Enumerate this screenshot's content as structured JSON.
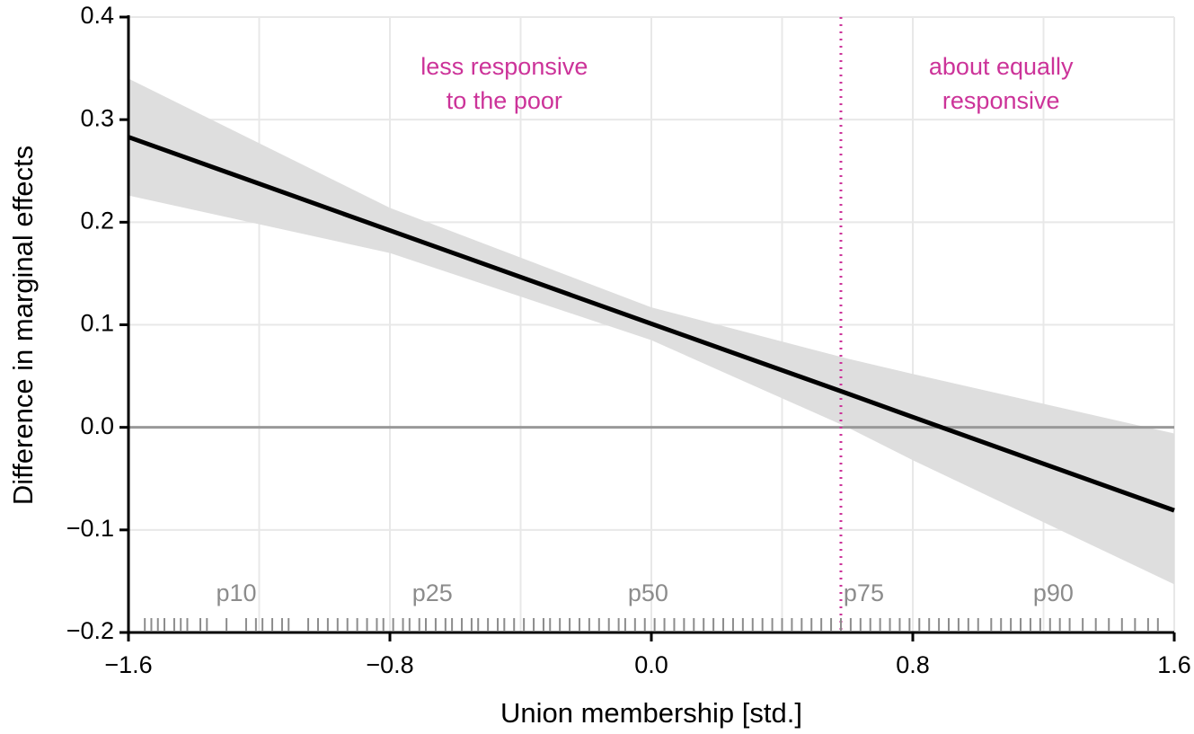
{
  "chart_data": {
    "type": "line",
    "x_label": "Union membership [std.]",
    "y_label": "Difference in marginal effects",
    "x": [
      -1.6,
      -0.8,
      0,
      0.6,
      0.8,
      1.6
    ],
    "series": [
      {
        "name": "Difference",
        "color": "#000000",
        "values": [
          0.283,
          0.192,
          0.101,
          0.033,
          0.01,
          -0.081
        ]
      }
    ],
    "band": {
      "color": "#dedede",
      "upper": [
        0.34,
        0.214,
        0.117,
        0.067,
        0.052,
        -0.006
      ],
      "lower": [
        0.226,
        0.17,
        0.085,
        0.0,
        -0.032,
        -0.153
      ]
    },
    "xlim": [
      -1.6,
      1.6
    ],
    "ylim": [
      -0.2,
      0.4
    ],
    "xticks": [
      {
        "value": -1.6,
        "label": "−1.6"
      },
      {
        "value": -0.8,
        "label": "−0.8"
      },
      {
        "value": 0,
        "label": "0.0"
      },
      0.8,
      1.6
    ],
    "x_minor_grid": [
      -1.2,
      -0.4,
      0.4,
      1.2
    ],
    "yticks": [
      {
        "value": -0.2,
        "label": "−0.2"
      },
      {
        "value": -0.1,
        "label": "−0.1"
      },
      {
        "value": 0,
        "label": "0.0"
      },
      0.1,
      0.2,
      0.3,
      0.4
    ],
    "grid": true,
    "reference_hline": 0,
    "reference_vline": {
      "value": 0.58,
      "color": "#cc3399"
    },
    "annotations": [
      {
        "lines": [
          "less responsive",
          "to the poor"
        ],
        "x": -0.45,
        "y": 0.35,
        "color": "#cc3399"
      },
      {
        "lines": [
          "about equally",
          "responsive"
        ],
        "x": 1.07,
        "y": 0.35,
        "color": "#cc3399"
      }
    ],
    "percentiles": [
      {
        "label": "p10",
        "x": -1.27
      },
      {
        "label": "p25",
        "x": -0.67
      },
      {
        "label": "p50",
        "x": -0.01
      },
      {
        "label": "p75",
        "x": 0.65
      },
      {
        "label": "p90",
        "x": 1.23
      }
    ],
    "rug_color": "#8c8c8c",
    "rug": [
      -1.55,
      -1.53,
      -1.51,
      -1.49,
      -1.46,
      -1.44,
      -1.42,
      -1.38,
      -1.36,
      -1.3,
      -1.24,
      -1.21,
      -1.19,
      -1.16,
      -1.13,
      -1.11,
      -1.05,
      -1.02,
      -0.99,
      -0.96,
      -0.93,
      -0.9,
      -0.87,
      -0.84,
      -0.82,
      -0.79,
      -0.76,
      -0.74,
      -0.71,
      -0.69,
      -0.66,
      -0.63,
      -0.61,
      -0.58,
      -0.55,
      -0.53,
      -0.5,
      -0.47,
      -0.45,
      -0.42,
      -0.39,
      -0.36,
      -0.33,
      -0.31,
      -0.28,
      -0.25,
      -0.22,
      -0.19,
      -0.16,
      -0.13,
      -0.1,
      -0.08,
      -0.05,
      -0.02,
      0.01,
      0.04,
      0.07,
      0.1,
      0.13,
      0.16,
      0.19,
      0.22,
      0.25,
      0.28,
      0.31,
      0.34,
      0.37,
      0.4,
      0.43,
      0.46,
      0.49,
      0.52,
      0.55,
      0.58,
      0.61,
      0.64,
      0.67,
      0.7,
      0.73,
      0.76,
      0.79,
      0.82,
      0.85,
      0.88,
      0.91,
      0.94,
      0.97,
      1.0,
      1.04,
      1.07,
      1.1,
      1.13,
      1.16,
      1.19,
      1.22,
      1.25,
      1.28,
      1.32,
      1.36,
      1.4,
      1.44,
      1.48,
      1.52,
      1.55
    ]
  }
}
